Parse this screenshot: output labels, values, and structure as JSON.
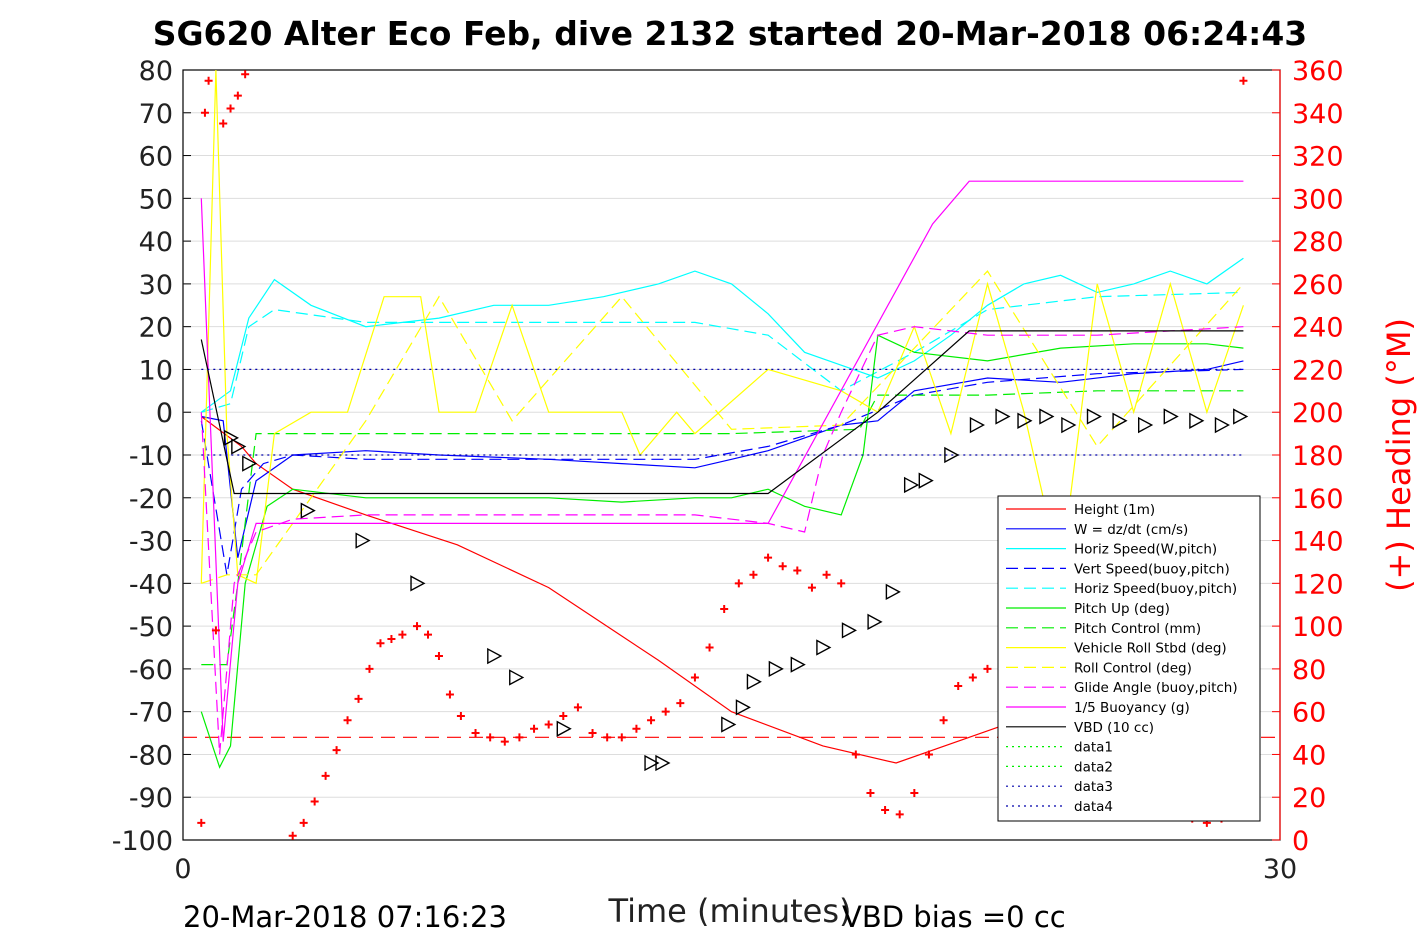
{
  "chart_data": {
    "type": "line",
    "title": "SG620 Alter Eco Feb, dive 2132 started 20-Mar-2018 06:24:43",
    "xlabel": "Time (minutes)",
    "ylabel": "",
    "ylabel_right": "(+) Heading (°M)",
    "xlim": [
      0,
      30
    ],
    "ylim": [
      -100,
      80
    ],
    "ylim_right": [
      0,
      360
    ],
    "xticks": [
      "0",
      "30"
    ],
    "yticks_left": [
      "80",
      "70",
      "60",
      "50",
      "40",
      "30",
      "20",
      "10",
      "0",
      "-10",
      "-20",
      "-30",
      "-40",
      "-50",
      "-60",
      "-70",
      "-80",
      "-90",
      "-100"
    ],
    "yticks_right": [
      "360",
      "340",
      "320",
      "300",
      "280",
      "260",
      "240",
      "220",
      "200",
      "180",
      "160",
      "140",
      "120",
      "100",
      "80",
      "60",
      "40",
      "20",
      "0"
    ],
    "grid": true,
    "legend_position": "lower-right",
    "footer_left": "20-Mar-2018 07:16:23",
    "footer_right": "VBD bias =0 cc",
    "series": [
      {
        "name": "Height (1m)",
        "color": "#ff0000",
        "style": "solid",
        "x": [
          0.5,
          1.6,
          2.0,
          3.0,
          5.0,
          7.5,
          10.0,
          13.0,
          15.0,
          17.5,
          19.5,
          21.5,
          22.5,
          25.0,
          26.0,
          28.0,
          29.0
        ],
        "y": [
          -1,
          -8,
          -12,
          -18,
          -24,
          -31,
          -41,
          -58,
          -70,
          -78,
          -82,
          -76,
          -73,
          -64,
          -59,
          -45,
          -38
        ]
      },
      {
        "name": "W = dz/dt (cm/s)",
        "color": "#0000ff",
        "style": "solid",
        "x": [
          0.5,
          1.1,
          1.5,
          2.0,
          3.0,
          5.0,
          7.0,
          10.0,
          12.0,
          14.0,
          15.0,
          16.0,
          17.0,
          18.0,
          19.0,
          20.0,
          22.0,
          24.0,
          26.0,
          28.0,
          29.0
        ],
        "y": [
          -1,
          -2,
          -34,
          -16,
          -10,
          -9,
          -10,
          -11,
          -12,
          -13,
          -11,
          -9,
          -6,
          -3,
          -2,
          5,
          8,
          7,
          9,
          10,
          12
        ]
      },
      {
        "name": "Horiz Speed(W,pitch)",
        "color": "#00ffff",
        "style": "solid",
        "x": [
          0.5,
          1.3,
          1.8,
          2.5,
          3.5,
          5.0,
          7.0,
          8.5,
          10.0,
          11.5,
          13.0,
          14.0,
          15.0,
          16.0,
          17.0,
          18.0,
          19.0,
          20.0,
          21.0,
          22.0,
          23.0,
          24.0,
          25.0,
          26.0,
          27.0,
          28.0,
          29.0
        ],
        "y": [
          0,
          5,
          22,
          31,
          25,
          20,
          22,
          25,
          25,
          27,
          30,
          33,
          30,
          23,
          14,
          11,
          8,
          12,
          18,
          25,
          30,
          32,
          28,
          30,
          33,
          30,
          36
        ]
      },
      {
        "name": "Vert Speed(buoy,pitch)",
        "color": "#0000ff",
        "style": "dashed",
        "x": [
          0.5,
          1.2,
          1.6,
          2.2,
          3.0,
          5.0,
          10.0,
          14.0,
          16.0,
          18.0,
          20.0,
          22.0,
          25.0,
          29.0
        ],
        "y": [
          -2,
          -38,
          -18,
          -12,
          -10,
          -11,
          -11,
          -11,
          -8,
          -3,
          4,
          7,
          9,
          10
        ]
      },
      {
        "name": "Horiz Speed(buoy,pitch)",
        "color": "#00ffff",
        "style": "dashed",
        "x": [
          0.5,
          1.3,
          1.8,
          2.5,
          5.0,
          10.0,
          14.0,
          16.0,
          18.0,
          20.0,
          22.0,
          25.0,
          29.0
        ],
        "y": [
          0,
          2,
          20,
          24,
          21,
          21,
          21,
          18,
          5,
          14,
          24,
          27,
          28
        ]
      },
      {
        "name": "Pitch Up (deg)",
        "color": "#00ee00",
        "style": "solid",
        "x": [
          0.5,
          1.0,
          1.3,
          1.7,
          2.3,
          3.0,
          5.0,
          8.0,
          10.0,
          12.0,
          14.0,
          15.0,
          16.0,
          17.0,
          18.0,
          18.6,
          19.0,
          20.0,
          22.0,
          24.0,
          26.0,
          28.0,
          29.0
        ],
        "y": [
          -70,
          -83,
          -78,
          -40,
          -22,
          -18,
          -20,
          -20,
          -20,
          -21,
          -20,
          -20,
          -18,
          -22,
          -24,
          -10,
          18,
          14,
          12,
          15,
          16,
          16,
          15
        ]
      },
      {
        "name": "Pitch Control (mm)",
        "color": "#00ee00",
        "style": "dashed",
        "x": [
          0.5,
          1.2,
          1.5,
          2.0,
          5.0,
          10.0,
          15.0,
          18.5,
          19.0,
          22.0,
          25.0,
          29.0
        ],
        "y": [
          -59,
          -59,
          -40,
          -5,
          -5,
          -5,
          -5,
          -4,
          4,
          4,
          5,
          5
        ]
      },
      {
        "name": "Vehicle Roll Stbd (deg)",
        "color": "#ffff00",
        "style": "solid",
        "x": [
          0.5,
          0.9,
          1.2,
          1.5,
          2.0,
          2.5,
          3.5,
          4.5,
          5.5,
          6.5,
          7.0,
          8.0,
          9.0,
          10.0,
          12.0,
          12.5,
          13.5,
          14.0,
          16.0,
          18.0,
          19.0,
          20.0,
          21.0,
          22.0,
          23.0,
          24.0,
          25.0,
          26.0,
          27.0,
          28.0,
          29.0
        ],
        "y": [
          -40,
          80,
          -5,
          -38,
          -40,
          -5,
          0,
          0,
          27,
          27,
          0,
          0,
          25,
          0,
          0,
          -10,
          0,
          -5,
          10,
          5,
          0,
          20,
          -5,
          30,
          0,
          -38,
          30,
          0,
          30,
          0,
          25
        ]
      },
      {
        "name": "Roll Control (deg)",
        "color": "#ffff00",
        "style": "dashed",
        "x": [
          0.5,
          1.2,
          2.0,
          5.0,
          7.0,
          9.0,
          12.0,
          15.0,
          18.0,
          22.0,
          25.0,
          29.0
        ],
        "y": [
          -40,
          -38,
          -38,
          -2,
          27,
          -2,
          27,
          -4,
          -3,
          33,
          -8,
          30
        ]
      },
      {
        "name": "Glide Angle (buoy,pitch)",
        "color": "#ff00ff",
        "style": "dashed",
        "x": [
          0.5,
          1.0,
          1.4,
          2.0,
          3.0,
          5.0,
          10.0,
          14.0,
          16.0,
          17.0,
          17.5,
          18.0,
          19.0,
          20.0,
          22.0,
          25.0,
          29.0
        ],
        "y": [
          0,
          -80,
          -40,
          -28,
          -25,
          -24,
          -24,
          -24,
          -26,
          -28,
          -10,
          0,
          18,
          20,
          18,
          18,
          20
        ]
      },
      {
        "name": "1/5 Buoyancy (g)",
        "color": "#ff00ff",
        "style": "solid",
        "x": [
          0.5,
          1.1,
          1.5,
          2.0,
          5.0,
          10.0,
          14.0,
          16.0,
          20.5,
          21.5,
          25.0,
          29.0
        ],
        "y": [
          50,
          -77,
          -40,
          -26,
          -26,
          -26,
          -26,
          -26,
          44,
          54,
          54,
          54
        ]
      },
      {
        "name": "VBD (10 cc)",
        "color": "#000000",
        "style": "solid",
        "x": [
          0.5,
          1.4,
          2.0,
          5.0,
          10.0,
          14.0,
          16.0,
          19.0,
          21.5,
          25.0,
          29.0
        ],
        "y": [
          17,
          -19,
          -19,
          -19,
          -19,
          -19,
          -19,
          0,
          19,
          19,
          19
        ]
      },
      {
        "name": "data1",
        "color": "#00ee00",
        "style": "dotted",
        "x": [],
        "y": []
      },
      {
        "name": "data2",
        "color": "#00ee00",
        "style": "dotted",
        "x": [],
        "y": []
      },
      {
        "name": "data3",
        "color": "#0000aa",
        "style": "dotted",
        "x": [
          0.5,
          29.0
        ],
        "y": [
          10,
          10
        ]
      },
      {
        "name": "data4",
        "color": "#0000aa",
        "style": "dotted",
        "x": [
          0.5,
          29.0
        ],
        "y": [
          -10,
          -10
        ]
      }
    ],
    "reference_line": {
      "color": "#ff0000",
      "style": "dashed",
      "y": -76
    },
    "heading_points": {
      "color": "#ff0000",
      "marker": "+",
      "x": [
        0.5,
        0.6,
        0.7,
        0.9,
        1.1,
        1.3,
        1.5,
        1.7,
        1.9,
        3.0,
        3.3,
        3.6,
        3.9,
        4.2,
        4.5,
        4.8,
        5.1,
        5.4,
        5.7,
        6.0,
        6.4,
        6.7,
        7.0,
        7.3,
        7.6,
        8.0,
        8.4,
        8.8,
        9.2,
        9.6,
        10.0,
        10.4,
        10.8,
        11.2,
        11.6,
        12.0,
        12.4,
        12.8,
        13.2,
        13.6,
        14.0,
        14.4,
        14.8,
        15.2,
        15.6,
        16.0,
        16.4,
        16.8,
        17.2,
        17.6,
        18.0,
        18.4,
        18.8,
        19.2,
        19.6,
        20.0,
        20.4,
        20.8,
        21.2,
        21.6,
        22.0,
        22.4,
        22.8,
        23.2,
        23.6,
        24.0,
        24.4,
        24.8,
        25.2,
        25.6,
        26.0,
        26.4,
        26.8,
        27.2,
        27.6,
        28.0,
        28.4,
        28.8,
        29.0
      ],
      "y": [
        8,
        340,
        355,
        98,
        335,
        342,
        348,
        358,
        365,
        2,
        8,
        18,
        30,
        42,
        56,
        66,
        80,
        92,
        94,
        96,
        100,
        96,
        86,
        68,
        58,
        50,
        48,
        46,
        48,
        52,
        54,
        58,
        62,
        50,
        48,
        48,
        52,
        56,
        60,
        64,
        76,
        90,
        108,
        120,
        124,
        132,
        128,
        126,
        118,
        124,
        120,
        40,
        22,
        14,
        12,
        22,
        40,
        56,
        72,
        76,
        80,
        82,
        86,
        90,
        60,
        48,
        30,
        22,
        18,
        26,
        36,
        46,
        30,
        20,
        10,
        8,
        10,
        14,
        355
      ]
    },
    "track_markers": {
      "color": "#000000",
      "marker": "triangle",
      "x": [
        1.3,
        1.5,
        1.8,
        3.4,
        4.9,
        6.4,
        8.5,
        9.1,
        10.4,
        12.8,
        13.1,
        14.9,
        15.3,
        15.6,
        16.2,
        16.8,
        17.5,
        18.2,
        18.9,
        19.4,
        19.9,
        20.3,
        21.0,
        21.7,
        22.4,
        23.0,
        23.6,
        24.2,
        24.9,
        25.6,
        26.3,
        27.0,
        27.7,
        28.4,
        28.9
      ],
      "y": [
        -6,
        -8,
        -12,
        -23,
        -30,
        -40,
        -57,
        -62,
        -74,
        -82,
        -82,
        -73,
        -69,
        -63,
        -60,
        -59,
        -55,
        -51,
        -49,
        -42,
        -17,
        -16,
        -10,
        -3,
        -1,
        -2,
        -1,
        -3,
        -1,
        -2,
        -3,
        -1,
        -2,
        -3,
        -1
      ]
    }
  }
}
